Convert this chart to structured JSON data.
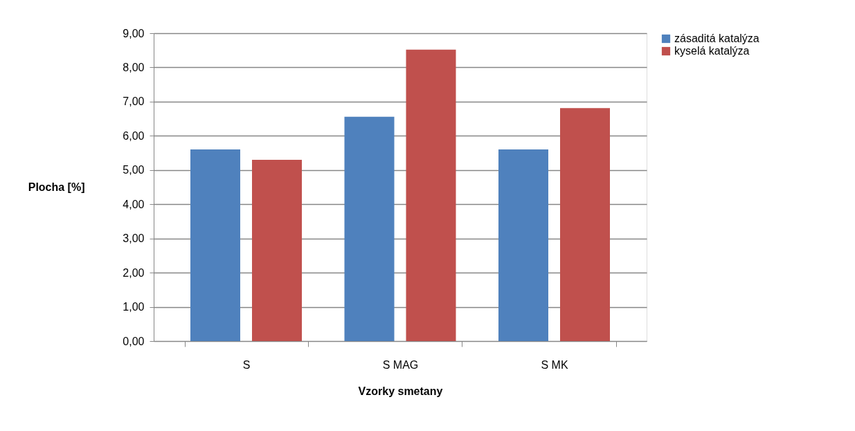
{
  "chart_data": {
    "type": "bar",
    "xlabel": "Vzorky smetany",
    "ylabel": "Plocha [%]",
    "categories": [
      "S",
      "S MAG",
      "S MK"
    ],
    "series": [
      {
        "name": "zásaditá katalýza",
        "color": "#4f81bd",
        "values": [
          5.6,
          6.56,
          5.6
        ]
      },
      {
        "name": "kyselá katalýza",
        "color": "#c0504d",
        "values": [
          5.3,
          8.52,
          6.81
        ]
      }
    ],
    "ylim": [
      0,
      9
    ],
    "yticks": [
      {
        "value": 0,
        "label": "0,00"
      },
      {
        "value": 1,
        "label": "1,00"
      },
      {
        "value": 2,
        "label": "2,00"
      },
      {
        "value": 3,
        "label": "3,00"
      },
      {
        "value": 4,
        "label": "4,00"
      },
      {
        "value": 5,
        "label": "5,00"
      },
      {
        "value": 6,
        "label": "6,00"
      },
      {
        "value": 7,
        "label": "7,00"
      },
      {
        "value": 8,
        "label": "8,00"
      },
      {
        "value": 9,
        "label": "9,00"
      }
    ],
    "grid": "y",
    "legend": "right"
  }
}
